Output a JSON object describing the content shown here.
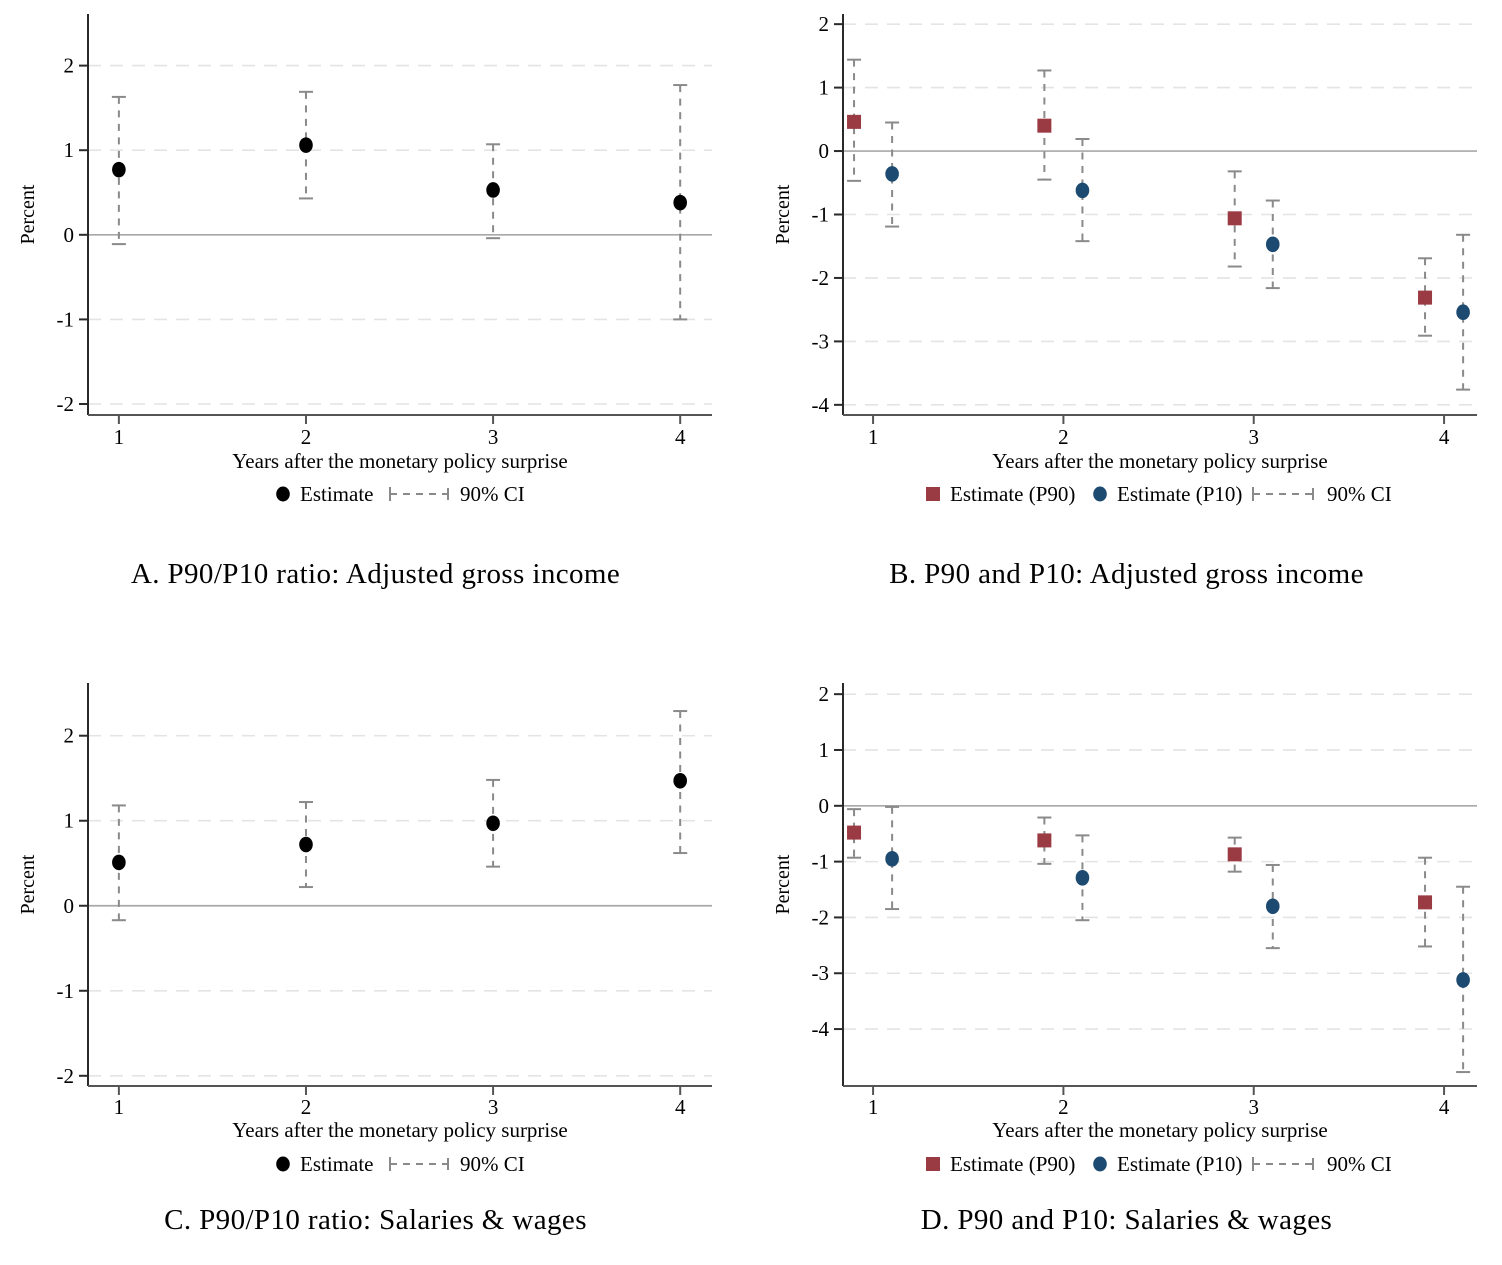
{
  "figure": {
    "background": "#ffffff",
    "colors": {
      "estimate_black": "#000000",
      "p90_maroon": "#9a3a42",
      "p10_navy": "#1d4a71",
      "ci_gray": "#8a8a8a",
      "grid_gray": "#e4e4e4",
      "zero_line_gray": "#a8a8a8",
      "x_axis_gray": "#555555",
      "y_axis_black": "#2a2a2a"
    }
  },
  "chart_data": [
    {
      "type": "scatter",
      "panel_label": "A",
      "title": "A. P90/P10 ratio: Adjusted gross income",
      "xlabel": "Years after the monetary policy surprise",
      "ylabel": "Percent",
      "xlim": [
        0.835,
        4.17
      ],
      "ylim": [
        -2.13,
        2.61
      ],
      "xticks": [
        1,
        2,
        3,
        4
      ],
      "yticks": [
        -2,
        -1,
        0,
        1,
        2
      ],
      "grid": "dashed",
      "zero_line": true,
      "series": [
        {
          "name": "Estimate",
          "marker": "circle",
          "color": "#000000",
          "x": [
            1,
            2,
            3,
            4
          ],
          "y": [
            0.77,
            1.06,
            0.53,
            0.38
          ],
          "ci_low": [
            -0.11,
            0.43,
            -0.04,
            -1.0
          ],
          "ci_high": [
            1.63,
            1.69,
            1.07,
            1.77
          ]
        }
      ],
      "legend": [
        {
          "marker": "circle",
          "color": "#000000",
          "label": "Estimate"
        },
        {
          "marker": "ci",
          "color": "#8a8a8a",
          "label": "90% CI"
        }
      ]
    },
    {
      "type": "scatter",
      "panel_label": "B",
      "title": "B. P90 and P10: Adjusted gross income",
      "xlabel": "Years after the monetary policy surprise",
      "ylabel": "Percent",
      "xlim": [
        0.842,
        4.173
      ],
      "ylim": [
        -4.16,
        2.16
      ],
      "xticks": [
        1,
        2,
        3,
        4
      ],
      "yticks": [
        -4,
        -3,
        -2,
        -1,
        0,
        1,
        2
      ],
      "grid": "dashed",
      "zero_line": true,
      "series": [
        {
          "name": "Estimate (P90)",
          "marker": "square",
          "color": "#9a3a42",
          "x": [
            0.9,
            1.9,
            2.9,
            3.9
          ],
          "y": [
            0.46,
            0.4,
            -1.06,
            -2.31
          ],
          "ci_low": [
            -0.47,
            -0.45,
            -1.82,
            -2.91
          ],
          "ci_high": [
            1.44,
            1.27,
            -0.32,
            -1.69
          ]
        },
        {
          "name": "Estimate (P10)",
          "marker": "circle",
          "color": "#1d4a71",
          "x": [
            1.1,
            2.1,
            3.1,
            4.1
          ],
          "y": [
            -0.36,
            -0.62,
            -1.47,
            -2.54
          ],
          "ci_low": [
            -1.19,
            -1.42,
            -2.16,
            -3.76
          ],
          "ci_high": [
            0.45,
            0.19,
            -0.78,
            -1.32
          ]
        }
      ],
      "legend": [
        {
          "marker": "square",
          "color": "#9a3a42",
          "label": "Estimate (P90)"
        },
        {
          "marker": "circle",
          "color": "#1d4a71",
          "label": "Estimate (P10)"
        },
        {
          "marker": "ci",
          "color": "#8a8a8a",
          "label": "90% CI"
        }
      ]
    },
    {
      "type": "scatter",
      "panel_label": "C",
      "title": "C. P90/P10 ratio: Salaries & wages",
      "xlabel": "Years after the monetary policy surprise",
      "ylabel": "Percent",
      "xlim": [
        0.835,
        4.17
      ],
      "ylim": [
        -2.12,
        2.62
      ],
      "xticks": [
        1,
        2,
        3,
        4
      ],
      "yticks": [
        -2,
        -1,
        0,
        1,
        2
      ],
      "grid": "dashed",
      "zero_line": true,
      "series": [
        {
          "name": "Estimate",
          "marker": "circle",
          "color": "#000000",
          "x": [
            1,
            2,
            3,
            4
          ],
          "y": [
            0.51,
            0.72,
            0.97,
            1.47
          ],
          "ci_low": [
            -0.17,
            0.22,
            0.46,
            0.62
          ],
          "ci_high": [
            1.18,
            1.22,
            1.48,
            2.29
          ]
        }
      ],
      "legend": [
        {
          "marker": "circle",
          "color": "#000000",
          "label": "Estimate"
        },
        {
          "marker": "ci",
          "color": "#8a8a8a",
          "label": "90% CI"
        }
      ]
    },
    {
      "type": "scatter",
      "panel_label": "D",
      "title": "D. P90 and P10: Salaries & wages",
      "xlabel": "Years after the monetary policy surprise",
      "ylabel": "Percent",
      "xlim": [
        0.842,
        4.173
      ],
      "ylim": [
        -5.02,
        2.2
      ],
      "xticks": [
        1,
        2,
        3,
        4
      ],
      "yticks": [
        -4,
        -3,
        -2,
        -1,
        0,
        1,
        2
      ],
      "grid": "dashed",
      "zero_line": true,
      "series": [
        {
          "name": "Estimate (P90)",
          "marker": "square",
          "color": "#9a3a42",
          "x": [
            0.9,
            1.9,
            2.9,
            3.9
          ],
          "y": [
            -0.48,
            -0.62,
            -0.87,
            -1.73
          ],
          "ci_low": [
            -0.93,
            -1.04,
            -1.18,
            -2.52
          ],
          "ci_high": [
            -0.06,
            -0.21,
            -0.57,
            -0.93
          ]
        },
        {
          "name": "Estimate (P10)",
          "marker": "circle",
          "color": "#1d4a71",
          "x": [
            1.1,
            2.1,
            3.1,
            4.1
          ],
          "y": [
            -0.95,
            -1.29,
            -1.8,
            -3.12
          ],
          "ci_low": [
            -1.85,
            -2.05,
            -2.55,
            -4.77
          ],
          "ci_high": [
            -0.02,
            -0.53,
            -1.06,
            -1.45
          ]
        }
      ],
      "legend": [
        {
          "marker": "square",
          "color": "#9a3a42",
          "label": "Estimate (P90)"
        },
        {
          "marker": "circle",
          "color": "#1d4a71",
          "label": "Estimate (P10)"
        },
        {
          "marker": "ci",
          "color": "#8a8a8a",
          "label": "90% CI"
        }
      ]
    }
  ]
}
